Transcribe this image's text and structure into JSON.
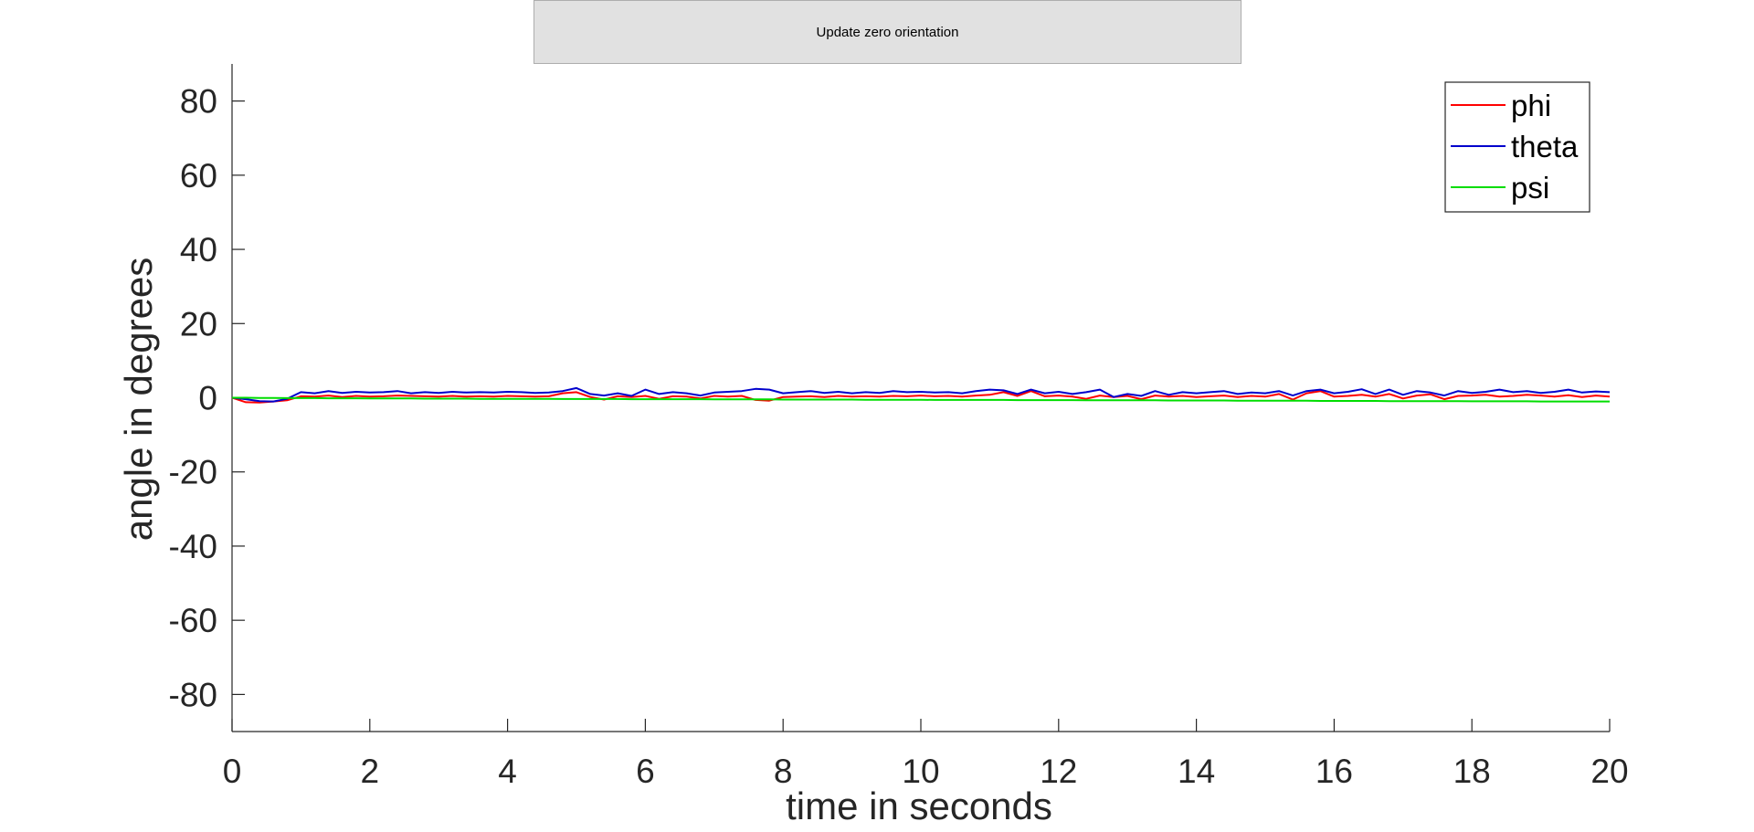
{
  "controls": {
    "update_button_label": "Update zero orientation"
  },
  "chart_data": {
    "type": "line",
    "xlabel": "time in seconds",
    "ylabel": "angle in degrees",
    "xlim": [
      0,
      20
    ],
    "ylim": [
      -90,
      90
    ],
    "xticks": [
      0,
      2,
      4,
      6,
      8,
      10,
      12,
      14,
      16,
      18,
      20
    ],
    "yticks": [
      -80,
      -60,
      -40,
      -20,
      0,
      20,
      40,
      60,
      80
    ],
    "grid": false,
    "legend": "top-right",
    "x": [
      0,
      0.2,
      0.4,
      0.6,
      0.8,
      1.0,
      1.2,
      1.4,
      1.6,
      1.8,
      2.0,
      2.2,
      2.4,
      2.6,
      2.8,
      3.0,
      3.2,
      3.4,
      3.6,
      3.8,
      4.0,
      4.2,
      4.4,
      4.6,
      4.8,
      5.0,
      5.2,
      5.4,
      5.6,
      5.8,
      6.0,
      6.2,
      6.4,
      6.6,
      6.8,
      7.0,
      7.2,
      7.4,
      7.6,
      7.8,
      8.0,
      8.2,
      8.4,
      8.6,
      8.8,
      9.0,
      9.2,
      9.4,
      9.6,
      9.8,
      10.0,
      10.2,
      10.4,
      10.6,
      10.8,
      11.0,
      11.2,
      11.4,
      11.6,
      11.8,
      12.0,
      12.2,
      12.4,
      12.6,
      12.8,
      13.0,
      13.2,
      13.4,
      13.6,
      13.8,
      14.0,
      14.2,
      14.4,
      14.6,
      14.8,
      15.0,
      15.2,
      15.4,
      15.6,
      15.8,
      16.0,
      16.2,
      16.4,
      16.6,
      16.8,
      17.0,
      17.2,
      17.4,
      17.6,
      17.8,
      18.0,
      18.2,
      18.4,
      18.6,
      18.8,
      19.0,
      19.2,
      19.4,
      19.6,
      19.8,
      20.0
    ],
    "series": [
      {
        "name": "phi",
        "color": "#ff0000",
        "values": [
          0,
          -1.2,
          -1.3,
          -1.0,
          -0.7,
          0.4,
          0.3,
          0.6,
          0.2,
          0.5,
          0.3,
          0.4,
          0.6,
          0.5,
          0.4,
          0.3,
          0.5,
          0.3,
          0.4,
          0.3,
          0.5,
          0.4,
          0.3,
          0.4,
          1.2,
          1.5,
          0.2,
          -0.5,
          0.4,
          0.2,
          0.5,
          -0.3,
          0.4,
          0.3,
          -0.2,
          0.5,
          0.3,
          0.5,
          -0.6,
          -0.8,
          0.2,
          0.3,
          0.4,
          0.2,
          0.5,
          0.3,
          0.4,
          0.3,
          0.5,
          0.4,
          0.6,
          0.4,
          0.5,
          0.3,
          0.6,
          0.8,
          1.5,
          0.5,
          1.8,
          0.4,
          0.6,
          0.3,
          -0.3,
          0.6,
          0.2,
          0.5,
          -0.4,
          0.6,
          0.3,
          0.5,
          0.2,
          0.4,
          0.6,
          0.2,
          0.5,
          0.3,
          1.0,
          -0.5,
          1.2,
          1.8,
          0.3,
          0.5,
          0.8,
          0.3,
          1.0,
          -0.2,
          0.6,
          0.9,
          -0.4,
          0.5,
          0.6,
          0.8,
          0.3,
          0.5,
          0.8,
          0.6,
          0.3,
          0.7,
          0.2,
          0.6,
          0.3
        ]
      },
      {
        "name": "theta",
        "color": "#0000cc",
        "values": [
          0,
          -0.4,
          -0.9,
          -1.0,
          -0.3,
          1.5,
          1.2,
          1.8,
          1.3,
          1.6,
          1.4,
          1.5,
          1.8,
          1.2,
          1.5,
          1.3,
          1.6,
          1.4,
          1.5,
          1.4,
          1.6,
          1.5,
          1.3,
          1.4,
          1.8,
          2.6,
          1.0,
          0.6,
          1.2,
          0.5,
          2.2,
          1.0,
          1.5,
          1.2,
          0.6,
          1.4,
          1.6,
          1.8,
          2.4,
          2.2,
          1.2,
          1.5,
          1.8,
          1.3,
          1.6,
          1.2,
          1.5,
          1.3,
          1.8,
          1.5,
          1.6,
          1.4,
          1.5,
          1.2,
          1.8,
          2.2,
          2.0,
          1.0,
          2.2,
          1.2,
          1.6,
          1.0,
          1.5,
          2.2,
          0.2,
          1.0,
          0.5,
          1.8,
          0.8,
          1.5,
          1.2,
          1.5,
          1.8,
          1.0,
          1.4,
          1.2,
          1.8,
          0.6,
          1.8,
          2.2,
          1.2,
          1.6,
          2.3,
          1.0,
          2.2,
          0.8,
          1.8,
          1.4,
          0.6,
          1.8,
          1.3,
          1.6,
          2.2,
          1.5,
          1.8,
          1.3,
          1.6,
          2.2,
          1.4,
          1.7,
          1.5
        ]
      },
      {
        "name": "psi",
        "color": "#00dd00",
        "values": [
          0,
          0,
          -0.05,
          -0.05,
          -0.1,
          -0.1,
          -0.1,
          -0.15,
          -0.15,
          -0.15,
          -0.2,
          -0.2,
          -0.2,
          -0.2,
          -0.25,
          -0.25,
          -0.25,
          -0.25,
          -0.3,
          -0.3,
          -0.3,
          -0.3,
          -0.3,
          -0.3,
          -0.35,
          -0.35,
          -0.35,
          -0.35,
          -0.35,
          -0.4,
          -0.4,
          -0.4,
          -0.4,
          -0.4,
          -0.4,
          -0.45,
          -0.45,
          -0.45,
          -0.45,
          -0.45,
          -0.5,
          -0.5,
          -0.5,
          -0.5,
          -0.5,
          -0.5,
          -0.55,
          -0.55,
          -0.55,
          -0.55,
          -0.55,
          -0.6,
          -0.6,
          -0.6,
          -0.6,
          -0.6,
          -0.6,
          -0.65,
          -0.65,
          -0.65,
          -0.65,
          -0.65,
          -0.7,
          -0.7,
          -0.7,
          -0.7,
          -0.7,
          -0.7,
          -0.75,
          -0.75,
          -0.75,
          -0.75,
          -0.75,
          -0.8,
          -0.8,
          -0.8,
          -0.8,
          -0.8,
          -0.8,
          -0.85,
          -0.85,
          -0.85,
          -0.85,
          -0.85,
          -0.9,
          -0.9,
          -0.9,
          -0.9,
          -0.9,
          -0.9,
          -0.95,
          -0.95,
          -0.95,
          -0.95,
          -0.95,
          -1.0,
          -1.0,
          -1.0,
          -1.0,
          -1.0,
          -1.0
        ]
      }
    ]
  }
}
